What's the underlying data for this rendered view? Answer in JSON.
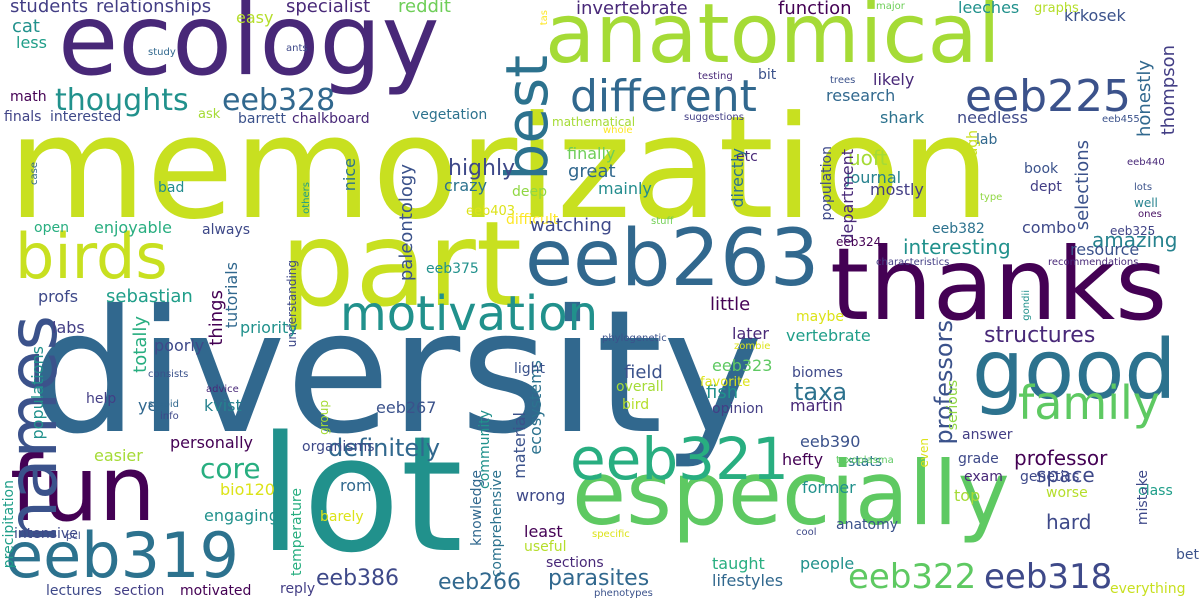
{
  "words": [
    "memorization",
    "diversity",
    "lot",
    "ecology",
    "anatomical",
    "part",
    "eeb263",
    "thanks",
    "fun",
    "especially",
    "good",
    "birds",
    "eeb319",
    "eeb321",
    "motivation",
    "different",
    "eeb225",
    "best",
    "names",
    "family",
    "eeb322",
    "eeb318",
    "eeb328",
    "thoughts",
    "core",
    "definitely",
    "professors",
    "professor",
    "structures",
    "parasites",
    "interesting",
    "amazing",
    "eeb386",
    "eeb266",
    "uoft",
    "highly",
    "students",
    "relationships",
    "specialist",
    "reddit",
    "invertebrate",
    "function",
    "leeches",
    "krkosek",
    "cat",
    "easy",
    "graphs",
    "major",
    "tas",
    "less",
    "study",
    "ants",
    "math",
    "ask",
    "barrett",
    "chalkboard",
    "vegetation",
    "finals",
    "interested",
    "testing",
    "trees",
    "research",
    "honestly",
    "thompson",
    "likely",
    "bit",
    "mathematical",
    "whole",
    "suggestions",
    "shark",
    "needless",
    "eeb455",
    "lab",
    "etc",
    "eeb440",
    "journal",
    "book",
    "though",
    "dept",
    "lots",
    "finally",
    "great",
    "mainly",
    "crazy",
    "deep",
    "eeb403",
    "difficult",
    "stuff",
    "bad",
    "nice",
    "case",
    "others",
    "paleontology",
    "population",
    "department",
    "mostly",
    "watching",
    "enjoyable",
    "always",
    "open",
    "combo",
    "eeb382",
    "eeb324",
    "eeb325",
    "ones",
    "well",
    "type",
    "selections",
    "resource",
    "recommendations",
    "characteristics",
    "eeb375",
    "tutorials",
    "understanding",
    "things",
    "sebastian",
    "profs",
    "labs",
    "little",
    "priority",
    "later",
    "vertebrate",
    "maybe",
    "zombie",
    "gondii",
    "poorly",
    "totally",
    "populations",
    "phylogenetic",
    "ecosystems",
    "eeb323",
    "biomes",
    "taxa",
    "martin",
    "field",
    "bird",
    "fish",
    "overall",
    "favorite",
    "light",
    "community",
    "material",
    "consists",
    "advice",
    "stupid",
    "info",
    "help",
    "yes",
    "kvist",
    "eeb267",
    "opinion",
    "serious",
    "personally",
    "answer",
    "easier",
    "eeb390",
    "hefty",
    "grade",
    "space",
    "stats",
    "former",
    "top",
    "exam",
    "genetics",
    "mistake",
    "class",
    "worse",
    "precipitation",
    "bio120",
    "rom",
    "organisms",
    "group",
    "even",
    "engaging",
    "wrong",
    "temperature",
    "barely",
    "knowledge",
    "comprehensive",
    "intensive",
    "pcl",
    "toxoplasma",
    "hard",
    "anatomy",
    "least",
    "useful",
    "specific",
    "cool",
    "sections",
    "people",
    "taught",
    "lifestyles",
    "lectures",
    "section",
    "motivated",
    "reply",
    "phenotypes",
    "everything",
    "bet",
    "directly"
  ]
}
